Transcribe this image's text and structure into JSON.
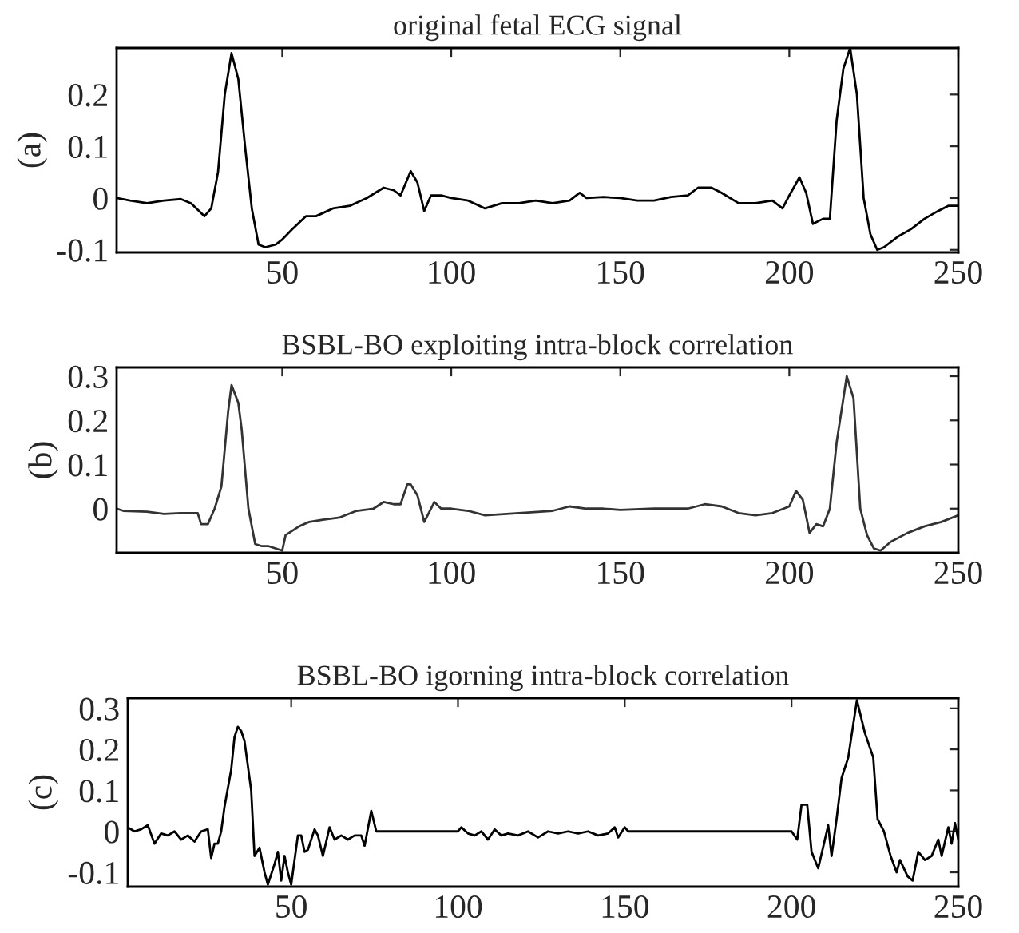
{
  "chart_data": [
    {
      "type": "line",
      "title": "original fetal ECG signal",
      "ylabel": "(a)",
      "xlim": [
        1,
        250
      ],
      "xticks": [
        50,
        100,
        150,
        200,
        250
      ],
      "ylim": [
        -0.105,
        0.29
      ],
      "yticks": [
        {
          "value": -0.1,
          "label": "-0.1"
        },
        0,
        0.1,
        0.2
      ],
      "grid": false,
      "legend": false,
      "line_style": "solid",
      "series": [
        {
          "color": "#000000",
          "x": [
            1,
            5,
            10,
            15,
            20,
            23,
            27,
            29,
            31,
            33,
            35,
            37,
            39,
            41,
            43,
            45,
            48,
            50,
            53,
            57,
            60,
            65,
            70,
            75,
            80,
            83,
            85,
            88,
            90,
            92,
            94,
            97,
            100,
            105,
            110,
            115,
            120,
            125,
            130,
            135,
            138,
            140,
            145,
            150,
            155,
            160,
            165,
            170,
            173,
            177,
            180,
            185,
            190,
            195,
            198,
            200,
            203,
            205,
            207,
            210,
            212,
            214,
            216,
            218,
            220,
            222,
            224,
            226,
            228,
            232,
            236,
            240,
            244,
            247,
            250
          ],
          "values": [
            0,
            -0.005,
            -0.01,
            -0.005,
            -0.002,
            -0.01,
            -0.035,
            -0.02,
            0.05,
            0.2,
            0.28,
            0.23,
            0.1,
            -0.02,
            -0.09,
            -0.095,
            -0.09,
            -0.08,
            -0.06,
            -0.035,
            -0.035,
            -0.02,
            -0.015,
            0,
            0.02,
            0.015,
            0.005,
            0.052,
            0.03,
            -0.025,
            0.005,
            0.005,
            0,
            -0.005,
            -0.02,
            -0.01,
            -0.01,
            -0.005,
            -0.01,
            -0.005,
            0.01,
            0,
            0.002,
            0,
            -0.005,
            -0.005,
            0.002,
            0.005,
            0.02,
            0.02,
            0.01,
            -0.01,
            -0.01,
            -0.005,
            -0.02,
            0.005,
            0.04,
            0.01,
            -0.05,
            -0.04,
            -0.04,
            0.15,
            0.25,
            0.29,
            0.2,
            0,
            -0.07,
            -0.1,
            -0.095,
            -0.075,
            -0.06,
            -0.04,
            -0.025,
            -0.015,
            -0.015
          ]
        }
      ]
    },
    {
      "type": "line",
      "title": "BSBL-BO exploiting intra-block correlation",
      "ylabel": "(b)",
      "xlim": [
        1,
        250
      ],
      "xticks": [
        50,
        100,
        150,
        200,
        250
      ],
      "ylim": [
        -0.1,
        0.32
      ],
      "yticks": [
        0,
        0.1,
        0.2,
        0.3
      ],
      "grid": false,
      "legend": false,
      "line_style": "solid",
      "series": [
        {
          "color": "#333333",
          "x": [
            1,
            3,
            10,
            15,
            20,
            25,
            26,
            28,
            30,
            32,
            34,
            35,
            37,
            38,
            40,
            42,
            44,
            46,
            48,
            50,
            51,
            55,
            58,
            62,
            67,
            72,
            77,
            80,
            83,
            85,
            87,
            88,
            90,
            92,
            94,
            95,
            97,
            100,
            105,
            110,
            120,
            130,
            135,
            140,
            145,
            150,
            160,
            170,
            175,
            180,
            185,
            190,
            195,
            200,
            202,
            204,
            206,
            208,
            210,
            212,
            214,
            216,
            217,
            219,
            221,
            223,
            225,
            227,
            230,
            235,
            240,
            245,
            250
          ],
          "values": [
            0,
            -0.005,
            -0.007,
            -0.012,
            -0.01,
            -0.01,
            -0.035,
            -0.035,
            0,
            0.05,
            0.22,
            0.28,
            0.24,
            0.18,
            0,
            -0.08,
            -0.085,
            -0.085,
            -0.09,
            -0.095,
            -0.06,
            -0.04,
            -0.03,
            -0.025,
            -0.02,
            -0.005,
            0,
            0.015,
            0.01,
            0.01,
            0.055,
            0.055,
            0.03,
            -0.03,
            0,
            0.015,
            0,
            0,
            -0.005,
            -0.015,
            -0.01,
            -0.005,
            0.005,
            0,
            0,
            -0.003,
            0,
            0,
            0.01,
            0.005,
            -0.01,
            -0.015,
            -0.01,
            0.005,
            0.04,
            0.02,
            -0.055,
            -0.035,
            -0.04,
            0,
            0.15,
            0.25,
            0.3,
            0.25,
            0,
            -0.06,
            -0.09,
            -0.095,
            -0.075,
            -0.055,
            -0.04,
            -0.03,
            -0.015
          ]
        }
      ]
    },
    {
      "type": "line",
      "title": "BSBL-BO igorning intra-block correlation",
      "ylabel": "(c)",
      "xlim": [
        1,
        250
      ],
      "xticks": [
        50,
        100,
        150,
        200,
        250
      ],
      "ylim": [
        -0.135,
        0.325
      ],
      "yticks": [
        {
          "value": -0.1,
          "label": "-0.1"
        },
        0,
        0.1,
        0.2,
        0.3
      ],
      "grid": false,
      "legend": false,
      "line_style": "solid",
      "series": [
        {
          "color": "#000000",
          "x": [
            1,
            3,
            5,
            7,
            9,
            11,
            13,
            15,
            17,
            19,
            21,
            23,
            25,
            26,
            27,
            28,
            29,
            30,
            32,
            33,
            34,
            35,
            36,
            38,
            39,
            40.5,
            42,
            43,
            45,
            46,
            47,
            48,
            49,
            50,
            52,
            53,
            54,
            55,
            57,
            58,
            59.5,
            61.5,
            63,
            65,
            67,
            69,
            71,
            72,
            74,
            75.5,
            100,
            101,
            103,
            105,
            107,
            109,
            111,
            113,
            115,
            118,
            121,
            124,
            127,
            130,
            133,
            136,
            139,
            142,
            145,
            147,
            148,
            150,
            151,
            200,
            201.7,
            203,
            204.7,
            206,
            208,
            210,
            211,
            212,
            213.5,
            215,
            217,
            219.6,
            222,
            224.5,
            225.8,
            227.7,
            229.7,
            231.5,
            232.5,
            234.8,
            236.3,
            238,
            240,
            242,
            244,
            245,
            247,
            248,
            249,
            250
          ],
          "values": [
            0.01,
            0,
            0.005,
            0.015,
            -0.03,
            -0.005,
            -0.01,
            0,
            -0.02,
            -0.01,
            -0.025,
            0,
            0.005,
            -0.065,
            -0.03,
            -0.03,
            0,
            0.06,
            0.15,
            0.23,
            0.255,
            0.245,
            0.22,
            0.1,
            -0.06,
            -0.04,
            -0.1,
            -0.13,
            -0.08,
            -0.05,
            -0.12,
            -0.06,
            -0.1,
            -0.13,
            -0.01,
            -0.01,
            -0.05,
            -0.045,
            0.005,
            -0.01,
            -0.06,
            0.01,
            -0.02,
            -0.01,
            -0.02,
            -0.01,
            -0.01,
            -0.035,
            0.05,
            0,
            0,
            0.01,
            -0.005,
            -0.01,
            0,
            -0.02,
            0.005,
            -0.01,
            -0.005,
            -0.01,
            0,
            -0.015,
            0,
            -0.005,
            0,
            -0.005,
            0,
            -0.01,
            -0.005,
            0.01,
            -0.015,
            0.01,
            0,
            0,
            -0.02,
            0.065,
            0.065,
            -0.05,
            -0.09,
            -0.02,
            0.015,
            -0.06,
            0.03,
            0.13,
            0.18,
            0.32,
            0.24,
            0.18,
            0.03,
            0,
            -0.06,
            -0.1,
            -0.07,
            -0.11,
            -0.12,
            -0.05,
            -0.07,
            -0.06,
            -0.02,
            -0.06,
            0.01,
            -0.03,
            0.02,
            -0.02
          ]
        }
      ]
    }
  ]
}
